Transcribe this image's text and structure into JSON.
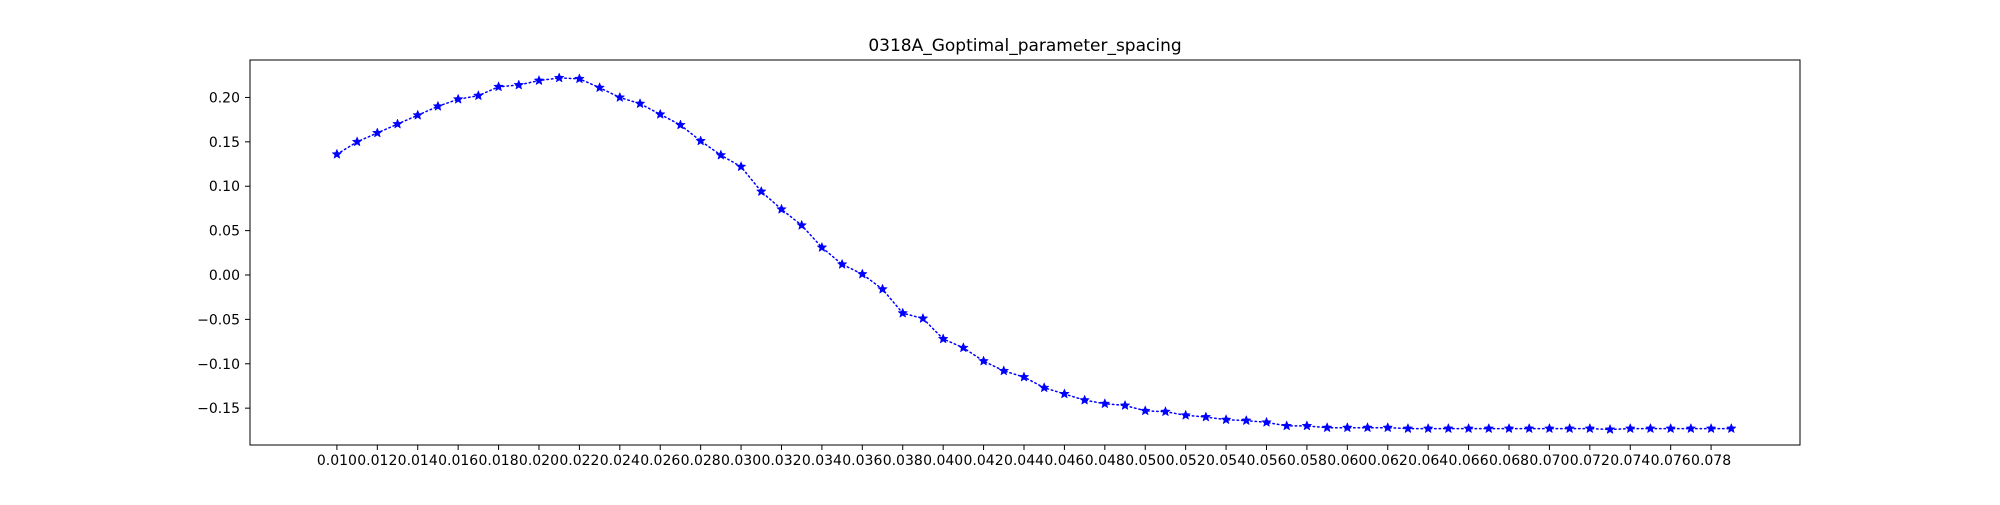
{
  "chart_data": {
    "type": "line",
    "title": "0318A_Goptimal_parameter_spacing",
    "xlabel": "",
    "ylabel": "",
    "xlim": [
      0.0057,
      0.0824
    ],
    "ylim": [
      -0.1915,
      0.2422
    ],
    "grid": false,
    "legend": "none",
    "x_ticks": [
      "0.010",
      "0.012",
      "0.014",
      "0.016",
      "0.018",
      "0.020",
      "0.022",
      "0.024",
      "0.026",
      "0.028",
      "0.030",
      "0.032",
      "0.034",
      "0.036",
      "0.038",
      "0.040",
      "0.042",
      "0.044",
      "0.046",
      "0.048",
      "0.050",
      "0.052",
      "0.054",
      "0.056",
      "0.058",
      "0.060",
      "0.062",
      "0.064",
      "0.066",
      "0.068",
      "0.070",
      "0.072",
      "0.074",
      "0.076",
      "0.078"
    ],
    "y_ticks": [
      "0.20",
      "0.15",
      "0.10",
      "0.05",
      "0.00",
      "−0.05",
      "−0.10",
      "−0.15"
    ],
    "series": [
      {
        "color": "#0000ff",
        "line_style": "dotted",
        "marker": "star",
        "x": [
          0.01,
          0.011,
          0.012,
          0.013,
          0.014,
          0.015,
          0.016,
          0.017,
          0.018,
          0.019,
          0.02,
          0.021,
          0.022,
          0.023,
          0.024,
          0.025,
          0.026,
          0.027,
          0.028,
          0.029,
          0.03,
          0.031,
          0.032,
          0.033,
          0.034,
          0.035,
          0.036,
          0.037,
          0.038,
          0.039,
          0.04,
          0.041,
          0.042,
          0.043,
          0.044,
          0.045,
          0.046,
          0.047,
          0.048,
          0.049,
          0.05,
          0.051,
          0.052,
          0.053,
          0.054,
          0.055,
          0.056,
          0.057,
          0.058,
          0.059,
          0.06,
          0.061,
          0.062,
          0.063,
          0.064,
          0.065,
          0.066,
          0.067,
          0.068,
          0.069,
          0.07,
          0.071,
          0.072,
          0.073,
          0.074,
          0.075,
          0.076,
          0.077,
          0.078,
          0.079
        ],
        "y": [
          0.136,
          0.15,
          0.16,
          0.17,
          0.18,
          0.19,
          0.198,
          0.202,
          0.212,
          0.214,
          0.219,
          0.222,
          0.221,
          0.211,
          0.2,
          0.193,
          0.181,
          0.169,
          0.151,
          0.135,
          0.122,
          0.094,
          0.074,
          0.056,
          0.031,
          0.012,
          0.001,
          -0.016,
          -0.043,
          -0.049,
          -0.072,
          -0.082,
          -0.097,
          -0.108,
          -0.115,
          -0.127,
          -0.134,
          -0.141,
          -0.145,
          -0.147,
          -0.153,
          -0.154,
          -0.158,
          -0.16,
          -0.163,
          -0.164,
          -0.166,
          -0.17,
          -0.17,
          -0.172,
          -0.172,
          -0.172,
          -0.172,
          -0.173,
          -0.173,
          -0.173,
          -0.173,
          -0.173,
          -0.173,
          -0.173,
          -0.173,
          -0.173,
          -0.173,
          -0.174,
          -0.173,
          -0.173,
          -0.173,
          -0.173,
          -0.173,
          -0.173
        ]
      }
    ]
  }
}
